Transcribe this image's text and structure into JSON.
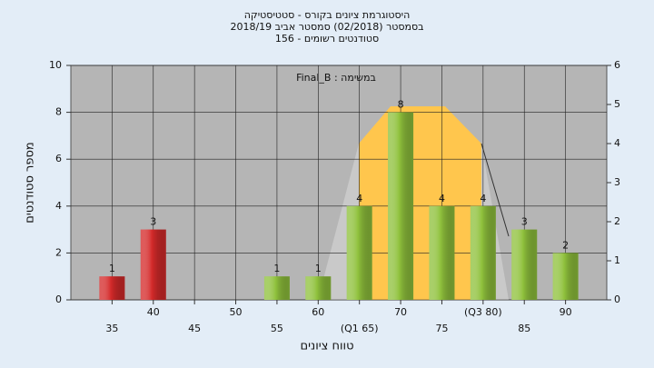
{
  "chart_data": {
    "type": "bar",
    "title": "היסטוגרמת ציונים בקורס - סטטיסטיקה",
    "subtitle": "בסמסטר  (02/2018)  סמסטר אביב 2018/19",
    "subtitle2": "סטודנטים רשומים - 156",
    "annotation": "Final_B : במשימה",
    "x_label": "טווח ציונים",
    "y_label": "מספר סטודנטים",
    "categories": [
      "35",
      "40",
      "45",
      "50",
      "55",
      "60",
      "(Q1 65)",
      "70",
      "75",
      "(Q3 80)",
      "85",
      "90"
    ],
    "values": [
      1,
      3,
      0,
      0,
      1,
      1,
      4,
      8,
      4,
      4,
      3,
      2
    ],
    "colors": [
      "#d42a2a",
      "#d42a2a",
      "#8fc13c",
      "#8fc13c",
      "#8fc13c",
      "#8fc13c",
      "#8fc13c",
      "#8fc13c",
      "#8fc13c",
      "#8fc13c",
      "#8fc13c",
      "#8fc13c"
    ],
    "ylim": [
      0,
      10
    ],
    "yticks": [
      0,
      2,
      4,
      6,
      8,
      10
    ],
    "y2lim": [
      0,
      6
    ],
    "y2ticks": [
      0,
      1,
      2,
      3,
      4,
      5,
      6
    ],
    "grid": true
  }
}
